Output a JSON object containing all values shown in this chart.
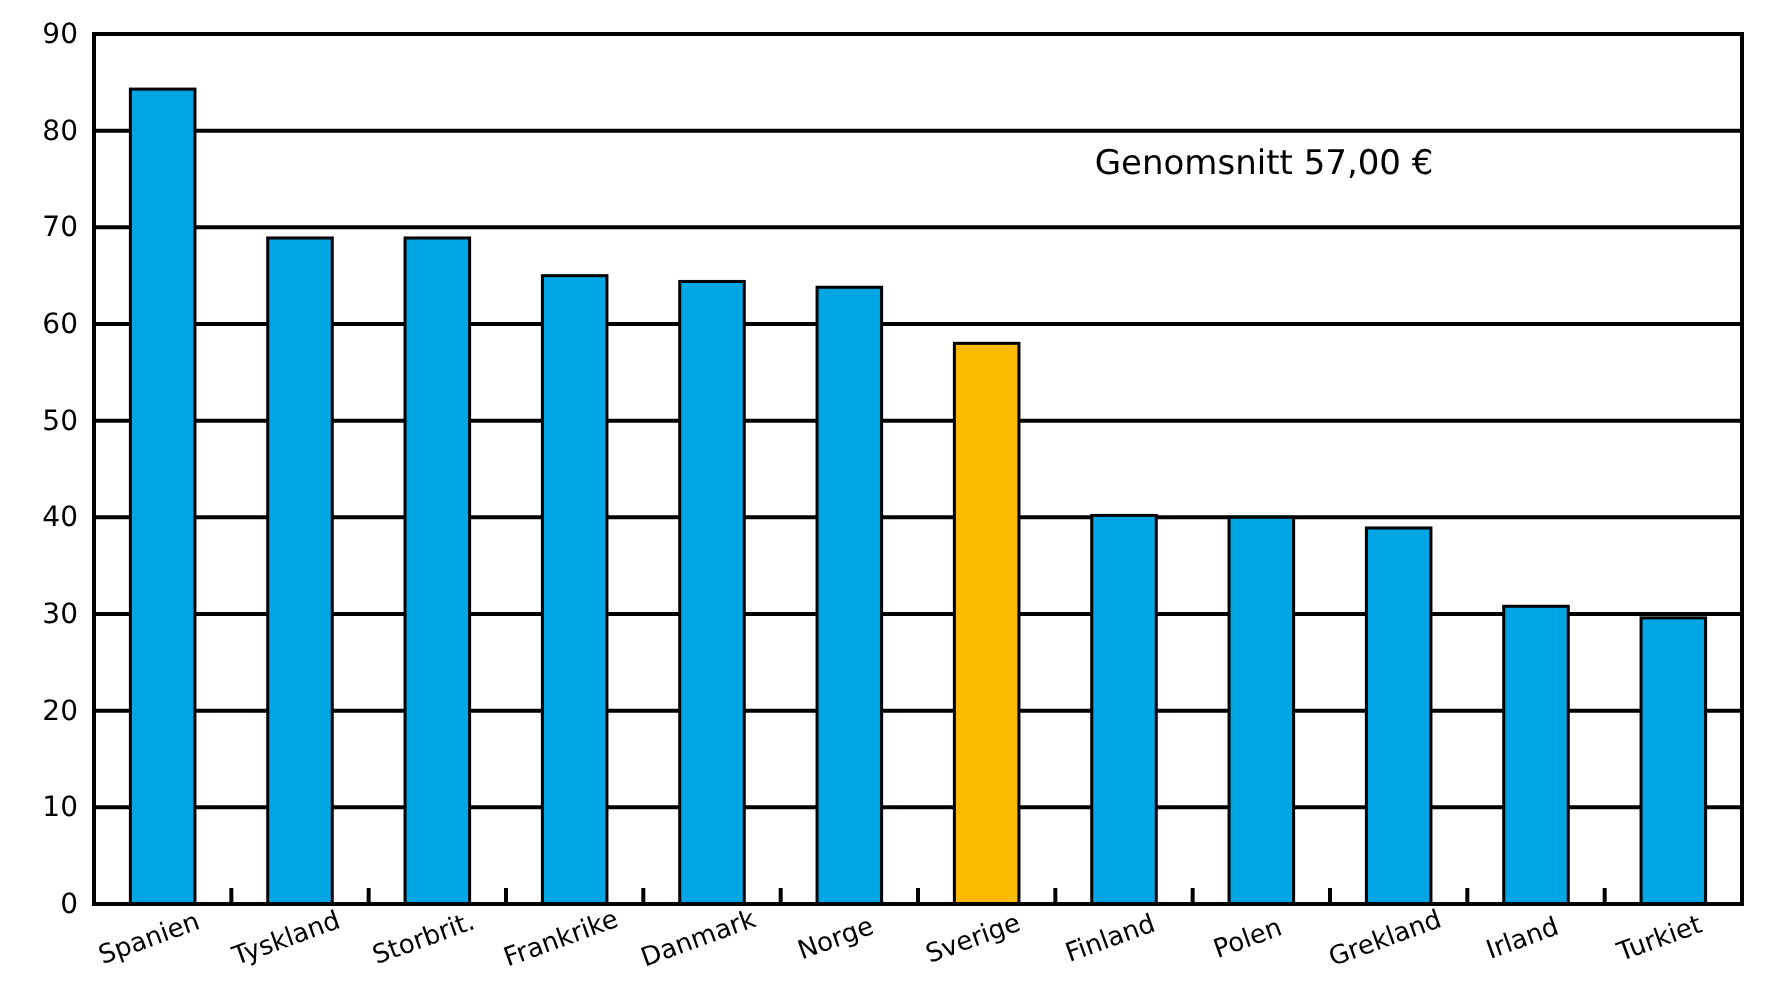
{
  "chart_data": {
    "type": "bar",
    "categories": [
      "Spanien",
      "Tyskland",
      "Storbrit.",
      "Frankrike",
      "Danmark",
      "Norge",
      "Sverige",
      "Finland",
      "Polen",
      "Grekland",
      "Irland",
      "Turkiet"
    ],
    "values": [
      84.3,
      68.9,
      68.9,
      65.0,
      64.4,
      63.8,
      58.0,
      40.2,
      40.0,
      38.9,
      30.8,
      29.6
    ],
    "colors": [
      "#00a6e4",
      "#00a6e4",
      "#00a6e4",
      "#00a6e4",
      "#00a6e4",
      "#00a6e4",
      "#fbba00",
      "#00a6e4",
      "#00a6e4",
      "#00a6e4",
      "#00a6e4",
      "#00a6e4"
    ],
    "ylim": [
      0,
      90
    ],
    "yticks": [
      0,
      10,
      20,
      30,
      40,
      50,
      60,
      70,
      80,
      90
    ],
    "grid": "y",
    "annotations": [
      "Genomsnitt  57,00 €"
    ]
  }
}
